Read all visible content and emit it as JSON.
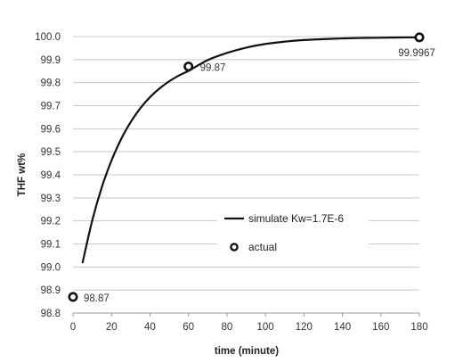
{
  "chart_data": {
    "type": "line",
    "title": "",
    "xlabel": "time (minute)",
    "ylabel": "THF wt%",
    "xlim": [
      0,
      180
    ],
    "ylim": [
      98.8,
      100.0
    ],
    "x_ticks": [
      "0",
      "20",
      "40",
      "60",
      "80",
      "100",
      "120",
      "140",
      "160",
      "180"
    ],
    "y_ticks": [
      "98.8",
      "98.9",
      "99.0",
      "99.1",
      "99.2",
      "99.3",
      "99.4",
      "99.5",
      "99.6",
      "99.7",
      "99.8",
      "99.9",
      "100.0"
    ],
    "grid": "horizontal",
    "legend_position": "center-right",
    "series": [
      {
        "name": "simulate Kw=1.7E-6",
        "kind": "line",
        "color": "#111111",
        "x": [
          5,
          10,
          15,
          20,
          25,
          30,
          35,
          40,
          45,
          50,
          55,
          60,
          70,
          80,
          90,
          100,
          110,
          120,
          130,
          140,
          150,
          160,
          170,
          180
        ],
        "y": [
          99.02,
          99.202,
          99.347,
          99.462,
          99.555,
          99.629,
          99.689,
          99.737,
          99.775,
          99.806,
          99.831,
          99.851,
          99.898,
          99.929,
          99.952,
          99.968,
          99.978,
          99.985,
          99.989,
          99.992,
          99.994,
          99.995,
          99.996,
          99.9967
        ]
      },
      {
        "name": "actual",
        "kind": "scatter",
        "marker": "open-circle",
        "color": "#111111",
        "x": [
          0,
          60,
          180
        ],
        "y": [
          98.87,
          99.87,
          99.9967
        ],
        "labels": [
          "98.87",
          "99.87",
          "99.9967"
        ]
      }
    ]
  }
}
